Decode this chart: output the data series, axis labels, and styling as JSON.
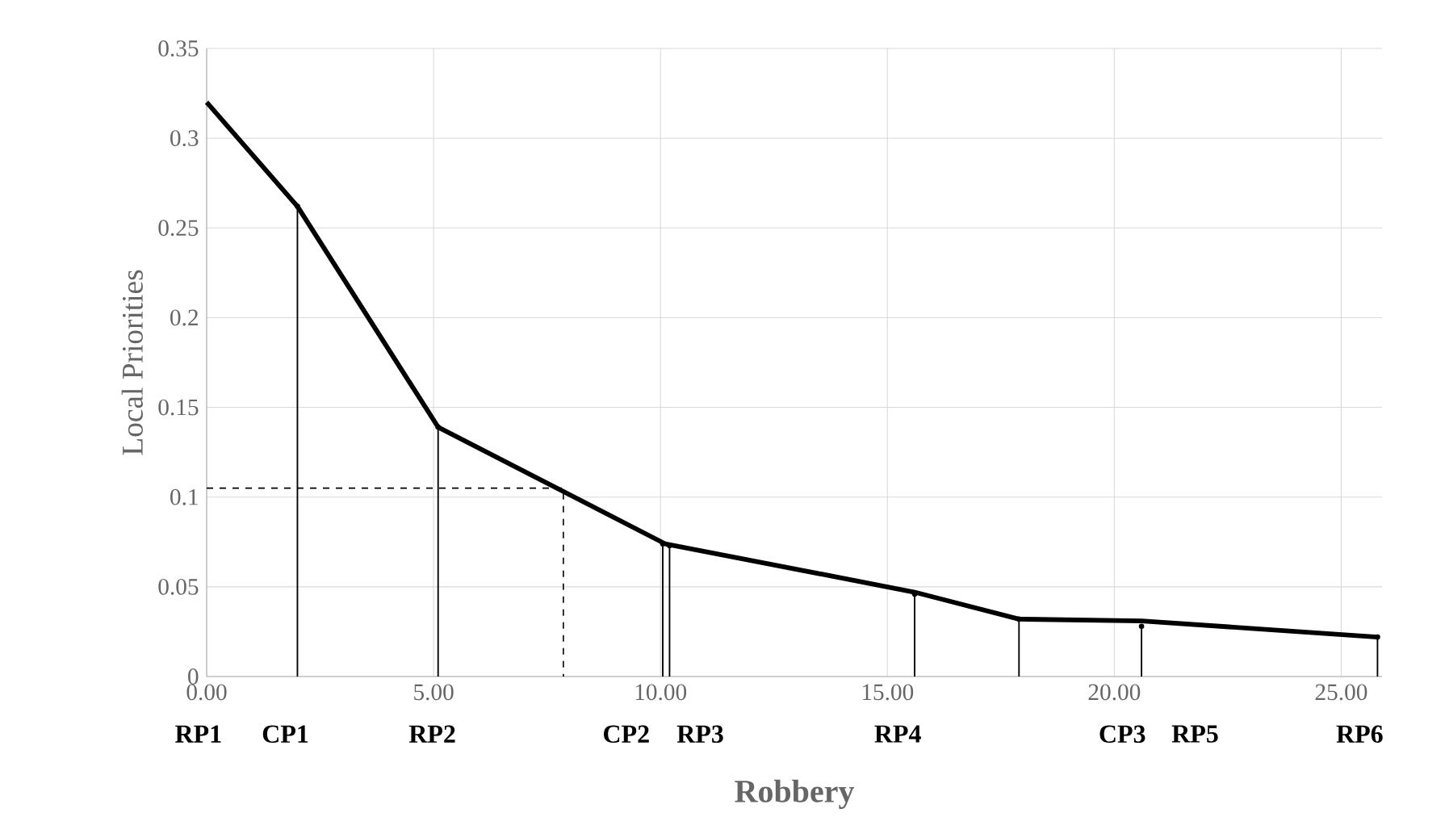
{
  "chart_data": {
    "type": "line",
    "xlabel": "Robbery",
    "ylabel": "Local Priorities",
    "xlim": [
      0,
      25.9
    ],
    "ylim": [
      0,
      0.35
    ],
    "xticks": [
      {
        "value": 0,
        "label": "0.00"
      },
      {
        "value": 5,
        "label": "5.00"
      },
      {
        "value": 10,
        "label": "10.00"
      },
      {
        "value": 15,
        "label": "15.00"
      },
      {
        "value": 20,
        "label": "20.00"
      },
      {
        "value": 25,
        "label": "25.00"
      }
    ],
    "yticks": [
      0,
      0.05,
      0.1,
      0.15,
      0.2,
      0.25,
      0.3,
      0.35
    ],
    "annotations": [
      "RP1",
      "CP1",
      "RP2",
      "CP2",
      "RP3",
      "RP4",
      "CP3",
      "RP5",
      "RP6"
    ],
    "grid": true,
    "series": [
      {
        "type": "line",
        "color": "#000000",
        "x": [
          0,
          2,
          5.1,
          10.1,
          15.6,
          17.9,
          20.6,
          25.8
        ],
        "values": [
          0.32,
          0.262,
          0.139,
          0.074,
          0.047,
          0.032,
          0.031,
          0.022
        ]
      },
      {
        "type": "lollipop",
        "color": "#000000",
        "x": [
          2,
          5.1,
          10.05,
          10.2,
          15.6,
          17.9,
          20.6,
          25.8
        ],
        "values": [
          0.262,
          0.139,
          0.074,
          0.073,
          0.046,
          0.032,
          0.028,
          0.022
        ]
      },
      {
        "type": "line",
        "color": "#000000",
        "line_style": "dashed",
        "x": [
          0,
          7.86,
          7.86
        ],
        "values": [
          0.105,
          0.105,
          0
        ]
      }
    ]
  }
}
